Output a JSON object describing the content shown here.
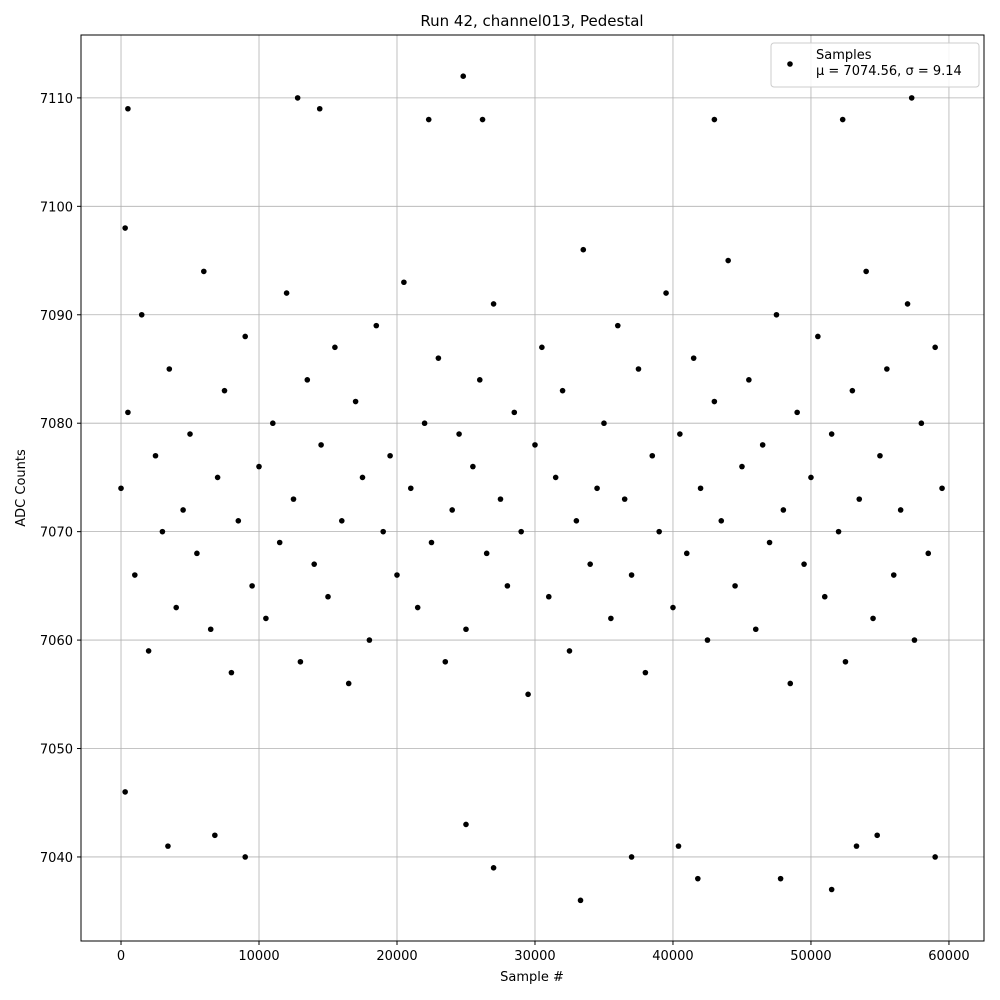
{
  "chart_data": {
    "type": "scatter",
    "title": "Run 42, channel013, Pedestal",
    "x_label": "Sample #",
    "y_label": "ADC Counts",
    "xlim": [
      -2900,
      62540
    ],
    "ylim": [
      7032.25,
      7115.8
    ],
    "xticks": [
      0,
      10000,
      20000,
      30000,
      40000,
      50000,
      60000
    ],
    "yticks": [
      7040,
      7050,
      7060,
      7070,
      7080,
      7090,
      7100,
      7110
    ],
    "grid": true,
    "legend_position": "upper right",
    "series": [
      {
        "name": "Samples",
        "color": "#000000",
        "annotation": "μ = 7074.56, σ = 9.14",
        "x": [
          0,
          500,
          1000,
          1500,
          2000,
          2500,
          3000,
          3500,
          4000,
          4500,
          5000,
          5500,
          6000,
          6500,
          7000,
          7500,
          8000,
          8500,
          9000,
          9500,
          10000,
          10500,
          11000,
          11500,
          12000,
          12500,
          13000,
          13500,
          14000,
          14500,
          15000,
          15500,
          16000,
          16500,
          17000,
          17500,
          18000,
          18500,
          19000,
          19500,
          20000,
          20500,
          21000,
          21500,
          22000,
          22500,
          23000,
          23500,
          24000,
          24500,
          25000,
          25500,
          26000,
          26500,
          27000,
          27500,
          28000,
          28500,
          29000,
          29500,
          30000,
          30500,
          31000,
          31500,
          32000,
          32500,
          33000,
          33500,
          34000,
          34500,
          35000,
          35500,
          36000,
          36500,
          37000,
          37500,
          38000,
          38500,
          39000,
          39500,
          40000,
          40500,
          41000,
          41500,
          42000,
          42500,
          43000,
          43500,
          44000,
          44500,
          45000,
          45500,
          46000,
          46500,
          47000,
          47500,
          48000,
          48500,
          49000,
          49500,
          50000,
          50500,
          51000,
          51500,
          52000,
          52500,
          53000,
          53500,
          54000,
          54500,
          55000,
          55500,
          56000,
          56500,
          57000,
          57500,
          58000,
          58500,
          59000,
          59500,
          500,
          12800,
          14400,
          24800,
          57300,
          33300,
          51500,
          41800,
          47800,
          27000,
          9000,
          37000,
          59000,
          3400,
          40400,
          53300,
          6800,
          54800,
          25000,
          22300,
          26200,
          43000,
          52300,
          300,
          300
        ],
        "values": [
          7074,
          7081,
          7066,
          7090,
          7059,
          7077,
          7070,
          7085,
          7063,
          7072,
          7079,
          7068,
          7094,
          7061,
          7075,
          7083,
          7057,
          7071,
          7088,
          7065,
          7076,
          7062,
          7080,
          7069,
          7092,
          7073,
          7058,
          7084,
          7067,
          7078,
          7064,
          7087,
          7071,
          7056,
          7082,
          7075,
          7060,
          7089,
          7070,
          7077,
          7066,
          7093,
          7074,
          7063,
          7080,
          7069,
          7086,
          7058,
          7072,
          7079,
          7061,
          7076,
          7084,
          7068,
          7091,
          7073,
          7065,
          7081,
          7070,
          7055,
          7078,
          7087,
          7064,
          7075,
          7083,
          7059,
          7071,
          7096,
          7067,
          7074,
          7080,
          7062,
          7089,
          7073,
          7066,
          7085,
          7057,
          7077,
          7070,
          7092,
          7063,
          7079,
          7068,
          7086,
          7074,
          7060,
          7082,
          7071,
          7095,
          7065,
          7076,
          7084,
          7061,
          7078,
          7069,
          7090,
          7072,
          7056,
          7081,
          7067,
          7075,
          7088,
          7064,
          7079,
          7070,
          7058,
          7083,
          7073,
          7094,
          7062,
          7077,
          7085,
          7066,
          7072,
          7091,
          7060,
          7080,
          7068,
          7087,
          7074,
          7109,
          7110,
          7109,
          7112,
          7110,
          7036,
          7037,
          7038,
          7038,
          7039,
          7040,
          7040,
          7040,
          7041,
          7041,
          7041,
          7042,
          7042,
          7043,
          7108,
          7108,
          7108,
          7108,
          7046,
          7098
        ]
      }
    ]
  }
}
